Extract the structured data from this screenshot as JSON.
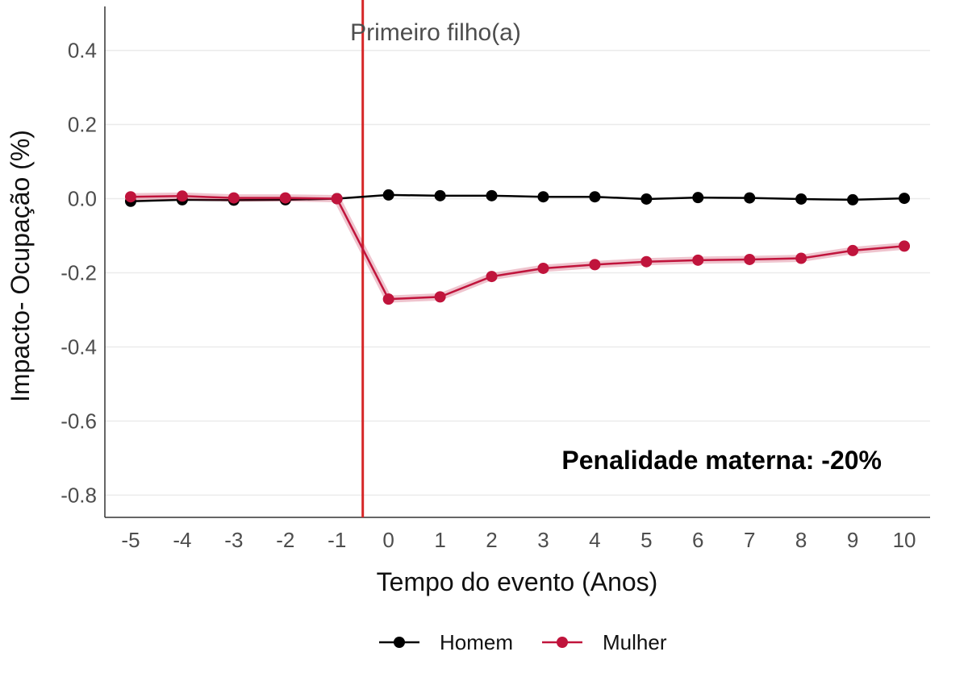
{
  "chart_data": {
    "type": "line",
    "x": [
      -5,
      -4,
      -3,
      -2,
      -1,
      0,
      1,
      2,
      3,
      4,
      5,
      6,
      7,
      8,
      9,
      10
    ],
    "series": [
      {
        "name": "Homem",
        "color": "#000000",
        "values": [
          -0.007,
          -0.003,
          -0.004,
          -0.003,
          0.0,
          0.01,
          0.008,
          0.008,
          0.005,
          0.005,
          -0.001,
          0.003,
          0.002,
          -0.001,
          -0.003,
          0.001
        ]
      },
      {
        "name": "Mulher",
        "color": "#c0143c",
        "values": [
          0.005,
          0.007,
          0.002,
          0.002,
          0.0,
          -0.271,
          -0.265,
          -0.21,
          -0.188,
          -0.178,
          -0.17,
          -0.166,
          -0.164,
          -0.161,
          -0.14,
          -0.128
        ]
      }
    ],
    "xlabel": "Tempo do evento (Anos)",
    "ylabel": "Impacto- Ocupação  (%)",
    "xlim": [
      -5.5,
      10.5
    ],
    "ylim": [
      -0.86,
      0.51
    ],
    "xticks": [
      -5,
      -4,
      -3,
      -2,
      -1,
      0,
      1,
      2,
      3,
      4,
      5,
      6,
      7,
      8,
      9,
      10
    ],
    "yticks": [
      0.4,
      0.2,
      0.0,
      -0.2,
      -0.4,
      -0.6,
      -0.8
    ],
    "ytick_labels": [
      "0.4",
      "0.2",
      "0.0",
      "-0.2",
      "-0.4",
      "-0.6",
      "-0.8"
    ],
    "event": {
      "x": -0.5,
      "label": "Primeiro filho(a)",
      "color": "#d62728"
    },
    "annotation": "Penalidade materna: -20%",
    "legend_position": "bottom",
    "grid": true
  }
}
